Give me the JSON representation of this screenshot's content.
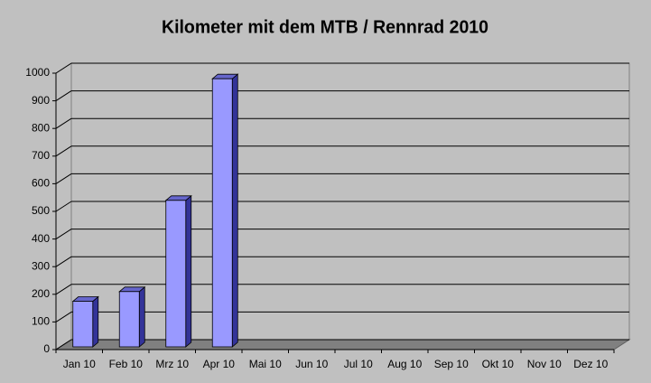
{
  "chart_data": {
    "type": "bar3d",
    "title": "Kilometer mit dem MTB / Rennrad 2010",
    "categories": [
      "Jan 10",
      "Feb 10",
      "Mrz 10",
      "Apr 10",
      "Mai 10",
      "Jun 10",
      "Jul 10",
      "Aug 10",
      "Sep 10",
      "Okt 10",
      "Nov 10",
      "Dez 10"
    ],
    "values": [
      165,
      200,
      530,
      970,
      null,
      null,
      null,
      null,
      null,
      null,
      null,
      null
    ],
    "color": "#9999ff",
    "ylim": [
      0,
      1000
    ],
    "yticks": [
      0,
      100,
      200,
      300,
      400,
      500,
      600,
      700,
      800,
      900,
      1000
    ],
    "grid": true
  }
}
